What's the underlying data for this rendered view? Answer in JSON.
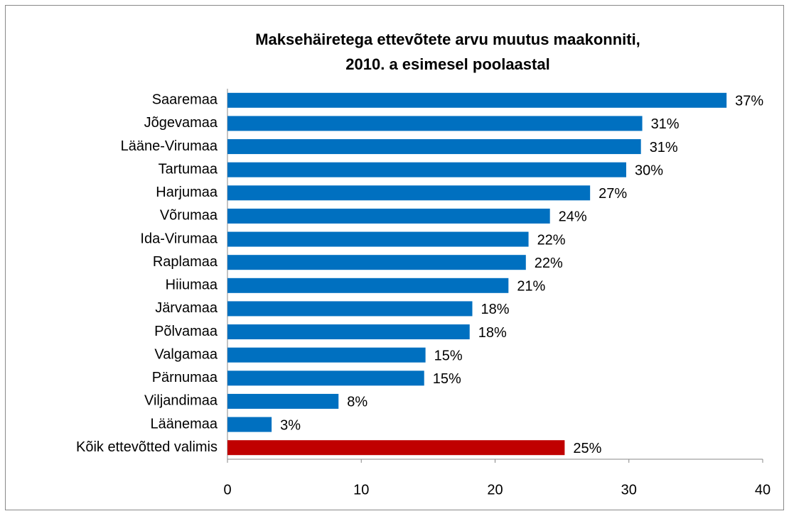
{
  "chart_data": {
    "type": "bar",
    "orientation": "horizontal",
    "title": "Maksehäiretega ettevõtete arvu muutus maakonniti,",
    "subtitle": "2010. a esimesel poolaastal",
    "categories": [
      "Saaremaa",
      "Jõgevamaa",
      "Lääne-Virumaa",
      "Tartumaa",
      "Harjumaa",
      "Võrumaa",
      "Ida-Virumaa",
      "Raplamaa",
      "Hiiumaa",
      "Järvamaa",
      "Põlvamaa",
      "Valgamaa",
      "Pärnumaa",
      "Viljandimaa",
      "Läänemaa",
      "Kõik ettevõtted valimis"
    ],
    "values": [
      37.3,
      31.0,
      30.9,
      29.8,
      27.1,
      24.1,
      22.5,
      22.3,
      21.0,
      18.3,
      18.1,
      14.8,
      14.7,
      8.3,
      3.3,
      25.2
    ],
    "value_labels": [
      "37%",
      "31%",
      "31%",
      "30%",
      "27%",
      "24%",
      "22%",
      "22%",
      "21%",
      "18%",
      "18%",
      "15%",
      "15%",
      "8%",
      "3%",
      "25%"
    ],
    "colors": [
      "#0070c0",
      "#0070c0",
      "#0070c0",
      "#0070c0",
      "#0070c0",
      "#0070c0",
      "#0070c0",
      "#0070c0",
      "#0070c0",
      "#0070c0",
      "#0070c0",
      "#0070c0",
      "#0070c0",
      "#0070c0",
      "#0070c0",
      "#c00000"
    ],
    "xlim": [
      0,
      40
    ],
    "xticks": [
      0,
      10,
      20,
      30,
      40
    ],
    "grid": false
  }
}
